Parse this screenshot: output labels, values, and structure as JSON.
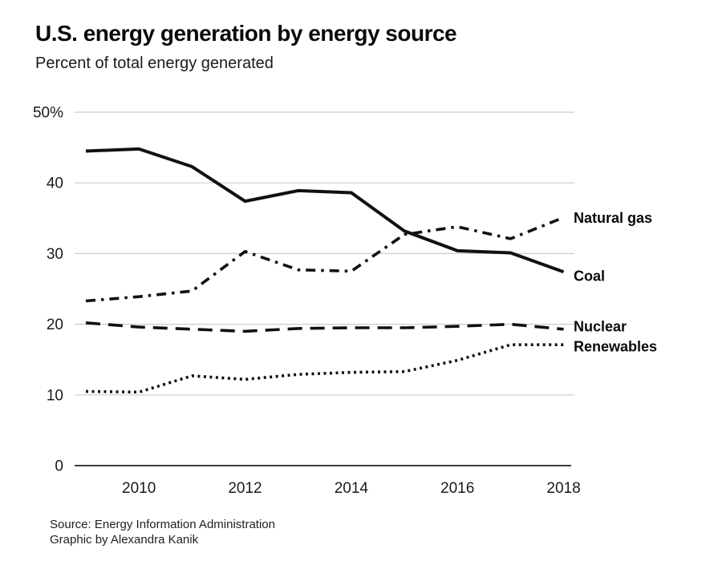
{
  "header": {
    "title": "U.S. energy generation by energy source",
    "subtitle": "Percent of total energy generated"
  },
  "footer": {
    "source": "Source: Energy Information Administration",
    "credit": "Graphic by Alexandra Kanik"
  },
  "chart_data": {
    "type": "line",
    "title": "U.S. energy generation by energy source",
    "subtitle": "Percent of total energy generated",
    "xlabel": "",
    "ylabel": "Percent of total energy generated",
    "x": [
      2009,
      2010,
      2011,
      2012,
      2013,
      2014,
      2015,
      2016,
      2017,
      2018
    ],
    "series": [
      {
        "name": "Coal",
        "style": "solid",
        "label_dy": 4.5,
        "values": [
          44.5,
          44.8,
          42.3,
          37.4,
          38.9,
          38.6,
          33.2,
          30.4,
          30.1,
          27.4
        ]
      },
      {
        "name": "Natural gas",
        "style": "dash-dot",
        "label_dy": 0,
        "values": [
          23.3,
          23.9,
          24.7,
          30.3,
          27.7,
          27.5,
          32.7,
          33.8,
          32.1,
          35.1
        ]
      },
      {
        "name": "Nuclear",
        "style": "dashed",
        "label_dy": -4,
        "values": [
          20.2,
          19.6,
          19.3,
          19.0,
          19.4,
          19.5,
          19.5,
          19.7,
          20.0,
          19.3
        ]
      },
      {
        "name": "Renewables",
        "style": "dotted",
        "label_dy": 2,
        "values": [
          10.5,
          10.4,
          12.7,
          12.2,
          12.9,
          13.2,
          13.3,
          14.9,
          17.1,
          17.1
        ]
      }
    ],
    "ylim": [
      0,
      50
    ],
    "yticks": [
      0,
      10,
      20,
      30,
      40,
      50
    ],
    "ytick_labels": [
      "0",
      "10",
      "20",
      "30",
      "40",
      "50%"
    ],
    "xticks": [
      2010,
      2012,
      2014,
      2016,
      2018
    ],
    "xtick_labels": [
      "2010",
      "2012",
      "2014",
      "2016",
      "2018"
    ],
    "grid": true,
    "legend_position": "right-of-line-ends",
    "colors": {
      "line": "#111111",
      "grid": "#cccccc",
      "axis": "#3d3d3d",
      "text": "#1a1a1a"
    }
  }
}
